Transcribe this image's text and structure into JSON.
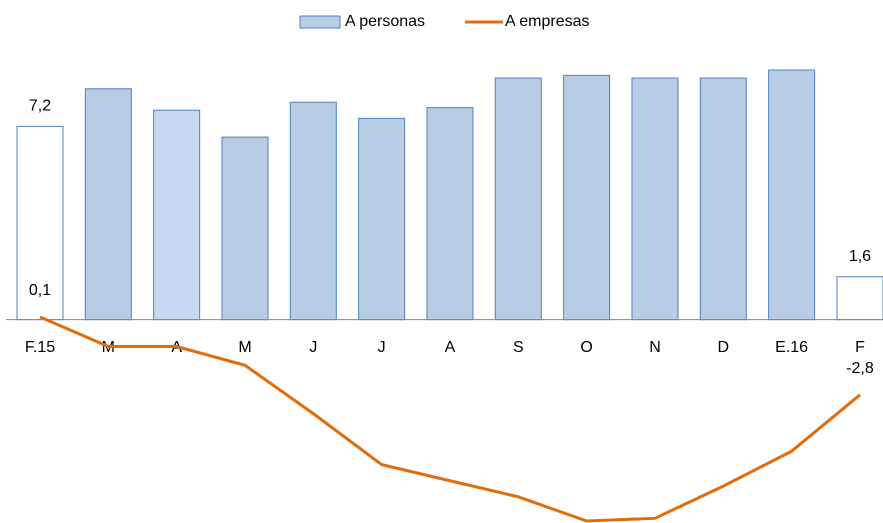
{
  "chart_data": {
    "type": "bar-line",
    "categories": [
      "F.15",
      "M",
      "A",
      "M",
      "J",
      "J",
      "A",
      "S",
      "O",
      "N",
      "D",
      "E.16",
      "F"
    ],
    "ylim": [
      -7.5,
      9.3
    ],
    "series": [
      {
        "name": "A personas",
        "type": "bar",
        "color": "#b8cce4",
        "edge": "#4f81bd",
        "colors": [
          "#ffffff",
          "#b8cce4",
          "#c6d9f0",
          "#b8cce4",
          "#b8cce4",
          "#b8cce4",
          "#b8cce4",
          "#b8cce4",
          "#b8cce4",
          "#b8cce4",
          "#b8cce4",
          "#b8cce4",
          "#ffffff"
        ],
        "values": [
          7.2,
          8.6,
          7.8,
          6.8,
          8.1,
          7.5,
          7.9,
          9.0,
          9.1,
          9.0,
          9.0,
          9.3,
          1.6
        ],
        "value_labels": [
          "7,2",
          null,
          null,
          null,
          null,
          null,
          null,
          null,
          null,
          null,
          null,
          null,
          "1,6"
        ]
      },
      {
        "name": "A empresas",
        "type": "line",
        "color": "#e36c0a",
        "values": [
          0.1,
          -1.0,
          -1.0,
          -1.7,
          -3.5,
          -5.4,
          -6.0,
          -6.6,
          -7.5,
          -7.4,
          -6.2,
          -4.9,
          -2.8
        ],
        "value_labels": [
          "0,1",
          null,
          null,
          null,
          null,
          null,
          null,
          null,
          null,
          null,
          null,
          null,
          "-2,8"
        ]
      }
    ]
  }
}
